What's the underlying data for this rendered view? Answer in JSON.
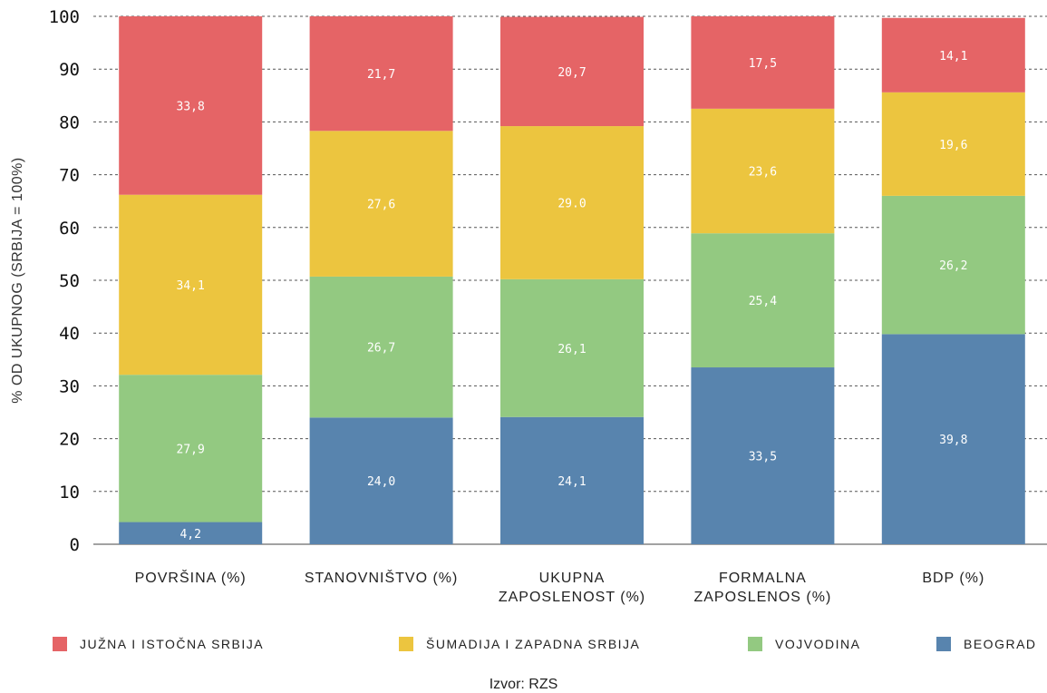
{
  "chart_data": {
    "type": "bar",
    "stacked": true,
    "ylabel": "% OD UKUPNOG (SRBIJA = 100%)",
    "ylim": [
      0,
      100
    ],
    "yticks": [
      0,
      10,
      20,
      30,
      40,
      50,
      60,
      70,
      80,
      90,
      100
    ],
    "grid": true,
    "legend_position": "bottom",
    "categories": [
      [
        "POVRŠINA (%)"
      ],
      [
        "STANOVNIŠTVO (%)"
      ],
      [
        "UKUPNA",
        "ZAPOSLENOST (%)"
      ],
      [
        "FORMALNA",
        "ZAPOSLENOS (%)"
      ],
      [
        "BDP (%)"
      ]
    ],
    "series": [
      {
        "name": "BEOGRAD",
        "color": "#5884ae",
        "values": [
          4.2,
          24.0,
          24.1,
          33.5,
          39.8
        ],
        "labels": [
          "4,2",
          "24,0",
          "24,1",
          "33,5",
          "39,8"
        ]
      },
      {
        "name": "VOJVODINA",
        "color": "#93c981",
        "values": [
          27.9,
          26.7,
          26.1,
          25.4,
          26.2
        ],
        "labels": [
          "27,9",
          "26,7",
          "26,1",
          "25,4",
          "26,2"
        ]
      },
      {
        "name": "ŠUMADIJA I ZAPADNA SRBIJA",
        "color": "#ecc53f",
        "values": [
          34.1,
          27.6,
          29.0,
          23.6,
          19.6
        ],
        "labels": [
          "34,1",
          "27,6",
          "29.0",
          "23,6",
          "19,6"
        ]
      },
      {
        "name": "JUŽNA I ISTOČNA SRBIJA",
        "color": "#e56466",
        "values": [
          33.8,
          21.7,
          20.7,
          17.5,
          14.1
        ],
        "labels": [
          "33,8",
          "21,7",
          "20,7",
          "17,5",
          "14,1"
        ]
      }
    ]
  },
  "legend": [
    {
      "name": "JUŽNA I ISTOČNA SRBIJA",
      "color": "#e56466"
    },
    {
      "name": "ŠUMADIJA I ZAPADNA SRBIJA",
      "color": "#ecc53f"
    },
    {
      "name": "VOJVODINA",
      "color": "#93c981"
    },
    {
      "name": "BEOGRAD",
      "color": "#5884ae"
    }
  ],
  "source": "Izvor: RZS"
}
